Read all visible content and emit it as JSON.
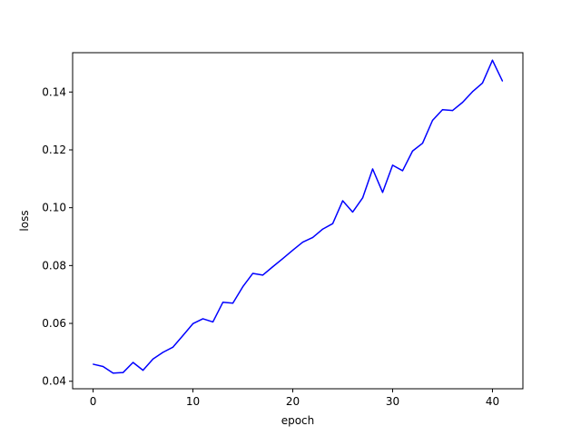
{
  "chart_data": {
    "type": "line",
    "title": "",
    "xlabel": "epoch",
    "ylabel": "loss",
    "xlim": [
      -2.05,
      43.05
    ],
    "ylim": [
      0.0374,
      0.1536
    ],
    "grid": false,
    "x_ticks": [
      0,
      10,
      20,
      30,
      40
    ],
    "x_tick_labels": [
      "0",
      "10",
      "20",
      "30",
      "40"
    ],
    "y_ticks": [
      0.04,
      0.06,
      0.08,
      0.1,
      0.12,
      0.14
    ],
    "y_tick_labels": [
      "0.04",
      "0.06",
      "0.08",
      "0.10",
      "0.12",
      "0.14"
    ],
    "series": [
      {
        "color": "#0000ff",
        "x": [
          0,
          1,
          2,
          3,
          4,
          5,
          6,
          7,
          8,
          9,
          10,
          11,
          12,
          13,
          14,
          15,
          16,
          17,
          18,
          19,
          20,
          21,
          22,
          23,
          24,
          25,
          26,
          27,
          28,
          29,
          30,
          31,
          32,
          33,
          34,
          35,
          36,
          37,
          38,
          39,
          40,
          41
        ],
        "y": [
          0.0459,
          0.0451,
          0.0428,
          0.043,
          0.0465,
          0.0438,
          0.0477,
          0.05,
          0.0518,
          0.0558,
          0.0599,
          0.0616,
          0.0605,
          0.0673,
          0.067,
          0.0727,
          0.0773,
          0.0767,
          0.0796,
          0.0824,
          0.0853,
          0.0881,
          0.0897,
          0.0926,
          0.0945,
          0.1024,
          0.0985,
          0.1034,
          0.1134,
          0.1053,
          0.1147,
          0.1128,
          0.1196,
          0.1223,
          0.1302,
          0.1339,
          0.1336,
          0.1364,
          0.1401,
          0.1431,
          0.151,
          0.1438
        ]
      }
    ]
  }
}
